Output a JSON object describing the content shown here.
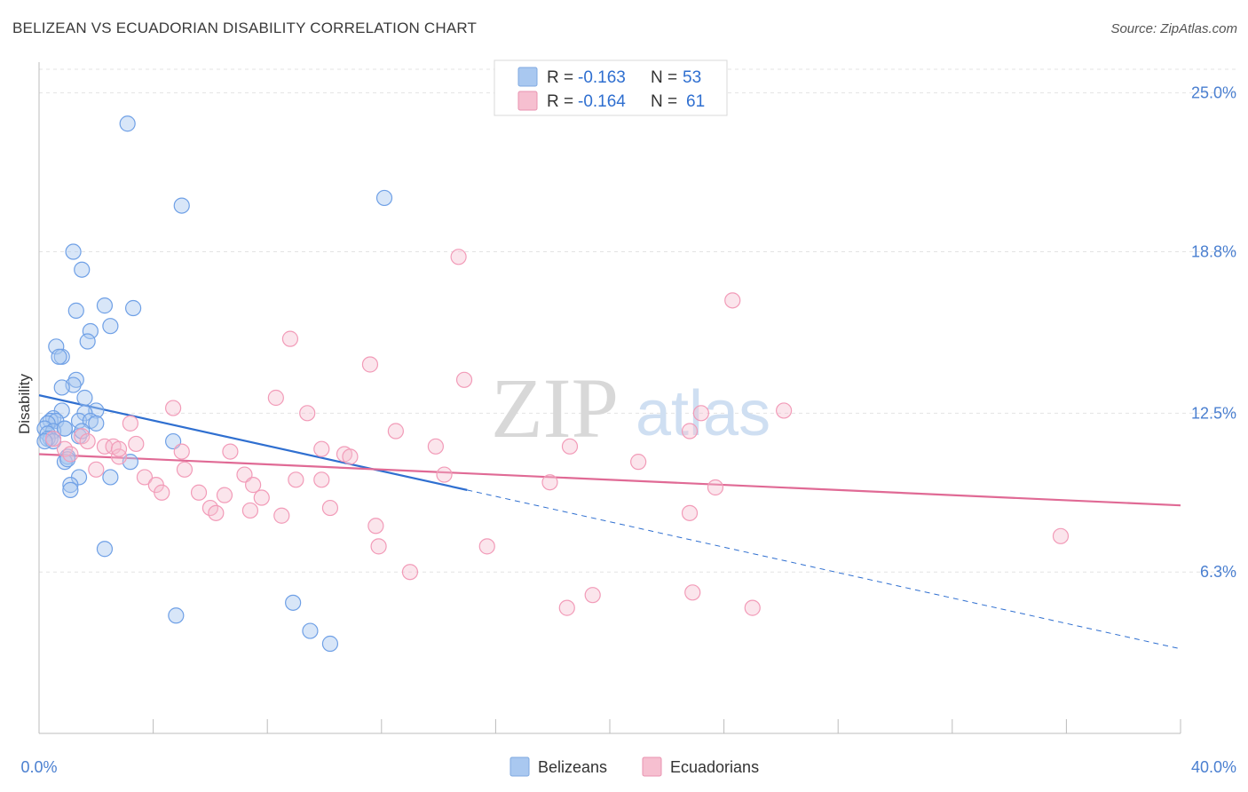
{
  "header": {
    "title": "BELIZEAN VS ECUADORIAN DISABILITY CORRELATION CHART",
    "source": "Source: ZipAtlas.com"
  },
  "watermark": {
    "zip": "ZIP",
    "atlas": "atlas"
  },
  "legend_top": {
    "rows": [
      {
        "r_label": "R =",
        "r_value": "-0.163",
        "n_label": "N =",
        "n_value": "53",
        "color": "#a9c8f0",
        "stroke": "#7fa9e0"
      },
      {
        "r_label": "R =",
        "r_value": "-0.164",
        "n_label": "N =",
        "n_value": "61",
        "color": "#f6bfd0",
        "stroke": "#e893b0"
      }
    ]
  },
  "legend_bottom": {
    "items": [
      {
        "label": "Belizeans",
        "color": "#a9c8f0",
        "stroke": "#7fa9e0"
      },
      {
        "label": "Ecuadorians",
        "color": "#f6bfd0",
        "stroke": "#e893b0"
      }
    ]
  },
  "chart_data": {
    "type": "scatter",
    "title": "BELIZEAN VS ECUADORIAN DISABILITY CORRELATION CHART",
    "ylabel": "Disability",
    "xlabel": "",
    "x_tick_labels": [
      "0.0%",
      "40.0%"
    ],
    "y_tick_labels": [
      "25.0%",
      "18.8%",
      "12.5%",
      "6.3%"
    ],
    "y_ticks": [
      25.0,
      18.8,
      12.5,
      6.3
    ],
    "xlim": [
      0,
      40
    ],
    "ylim": [
      0,
      26.2
    ],
    "grid": true,
    "legend_position": "top-center",
    "series": [
      {
        "name": "Belizeans",
        "color": "#6fa0e6",
        "trend": {
          "x0": 0,
          "y0": 13.2,
          "x1": 15,
          "y1": 9.5,
          "dashed_to_x": 40,
          "dashed_to_y": 3.3,
          "color": "#2f6fd0"
        },
        "points": [
          [
            3.1,
            23.8
          ],
          [
            5.0,
            20.6
          ],
          [
            12.1,
            20.9
          ],
          [
            1.2,
            18.8
          ],
          [
            1.5,
            18.1
          ],
          [
            2.3,
            16.7
          ],
          [
            3.3,
            16.6
          ],
          [
            1.3,
            16.5
          ],
          [
            2.5,
            15.9
          ],
          [
            1.8,
            15.7
          ],
          [
            1.7,
            15.3
          ],
          [
            0.6,
            15.1
          ],
          [
            0.8,
            14.7
          ],
          [
            0.7,
            14.7
          ],
          [
            1.3,
            13.8
          ],
          [
            1.2,
            13.6
          ],
          [
            0.8,
            13.5
          ],
          [
            1.6,
            13.1
          ],
          [
            0.8,
            12.6
          ],
          [
            2.0,
            12.6
          ],
          [
            1.6,
            12.5
          ],
          [
            0.5,
            12.3
          ],
          [
            0.4,
            12.2
          ],
          [
            0.6,
            12.2
          ],
          [
            1.4,
            12.2
          ],
          [
            1.8,
            12.2
          ],
          [
            2.0,
            12.1
          ],
          [
            0.3,
            12.1
          ],
          [
            0.2,
            11.9
          ],
          [
            0.9,
            11.9
          ],
          [
            0.5,
            11.8
          ],
          [
            0.3,
            11.7
          ],
          [
            1.4,
            11.6
          ],
          [
            0.4,
            11.5
          ],
          [
            0.3,
            11.5
          ],
          [
            0.5,
            11.4
          ],
          [
            0.2,
            11.4
          ],
          [
            4.7,
            11.4
          ],
          [
            1.0,
            10.8
          ],
          [
            0.9,
            10.6
          ],
          [
            1.0,
            10.7
          ],
          [
            3.2,
            10.6
          ],
          [
            1.4,
            10.0
          ],
          [
            2.5,
            10.0
          ],
          [
            1.1,
            9.7
          ],
          [
            1.1,
            9.5
          ],
          [
            2.3,
            7.2
          ],
          [
            4.8,
            4.6
          ],
          [
            8.9,
            5.1
          ],
          [
            9.5,
            4.0
          ],
          [
            10.2,
            3.5
          ],
          [
            0.9,
            11.9
          ],
          [
            1.5,
            11.8
          ]
        ]
      },
      {
        "name": "Ecuadorians",
        "color": "#f29bb8",
        "trend": {
          "x0": 0,
          "y0": 10.9,
          "x1": 40,
          "y1": 8.9,
          "color": "#e06a95"
        },
        "points": [
          [
            14.7,
            18.6
          ],
          [
            24.3,
            16.9
          ],
          [
            8.8,
            15.4
          ],
          [
            11.6,
            14.4
          ],
          [
            14.9,
            13.8
          ],
          [
            8.3,
            13.1
          ],
          [
            4.7,
            12.7
          ],
          [
            9.4,
            12.5
          ],
          [
            26.1,
            12.6
          ],
          [
            23.2,
            12.5
          ],
          [
            3.2,
            12.1
          ],
          [
            12.5,
            11.8
          ],
          [
            22.8,
            11.8
          ],
          [
            0.5,
            11.5
          ],
          [
            1.5,
            11.6
          ],
          [
            1.7,
            11.4
          ],
          [
            3.4,
            11.3
          ],
          [
            2.3,
            11.2
          ],
          [
            2.6,
            11.2
          ],
          [
            0.9,
            11.1
          ],
          [
            5.0,
            11.0
          ],
          [
            13.9,
            11.2
          ],
          [
            18.6,
            11.2
          ],
          [
            9.9,
            11.1
          ],
          [
            10.7,
            10.9
          ],
          [
            10.9,
            10.8
          ],
          [
            2.8,
            10.8
          ],
          [
            6.7,
            11.0
          ],
          [
            21.0,
            10.6
          ],
          [
            2.0,
            10.3
          ],
          [
            5.1,
            10.3
          ],
          [
            14.2,
            10.1
          ],
          [
            7.2,
            10.1
          ],
          [
            3.7,
            10.0
          ],
          [
            9.0,
            9.9
          ],
          [
            9.9,
            9.9
          ],
          [
            4.1,
            9.7
          ],
          [
            7.5,
            9.7
          ],
          [
            5.6,
            9.4
          ],
          [
            6.5,
            9.3
          ],
          [
            7.8,
            9.2
          ],
          [
            4.3,
            9.4
          ],
          [
            17.9,
            9.8
          ],
          [
            23.7,
            9.6
          ],
          [
            6.0,
            8.8
          ],
          [
            7.4,
            8.7
          ],
          [
            10.2,
            8.8
          ],
          [
            6.2,
            8.6
          ],
          [
            8.5,
            8.5
          ],
          [
            22.8,
            8.6
          ],
          [
            11.8,
            8.1
          ],
          [
            35.8,
            7.7
          ],
          [
            15.7,
            7.3
          ],
          [
            11.9,
            7.3
          ],
          [
            13.0,
            6.3
          ],
          [
            18.5,
            4.9
          ],
          [
            19.4,
            5.4
          ],
          [
            22.9,
            5.5
          ],
          [
            25.0,
            4.9
          ],
          [
            1.1,
            10.9
          ],
          [
            2.8,
            11.1
          ]
        ]
      }
    ]
  }
}
